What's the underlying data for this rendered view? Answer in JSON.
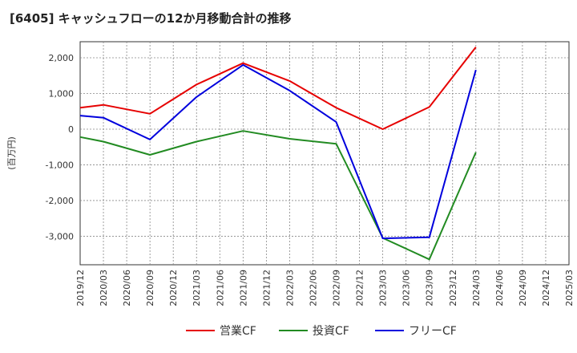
{
  "chart_data": {
    "type": "line",
    "title": "[6405]  キャッシュフローの12か月移動合計の推移",
    "ylabel": "(百万円)",
    "xlabel": "",
    "ylim": [
      -3800,
      2450
    ],
    "yticks": [
      2000,
      1000,
      0,
      -1000,
      -2000,
      -3000
    ],
    "ytick_labels": [
      "2,000",
      "1,000",
      "0",
      "-1,000",
      "-2,000",
      "-3,000"
    ],
    "categories": [
      "2019/12",
      "2020/03",
      "2020/06",
      "2020/09",
      "2020/12",
      "2021/03",
      "2021/06",
      "2021/09",
      "2021/12",
      "2022/03",
      "2022/06",
      "2022/09",
      "2022/12",
      "2023/03",
      "2023/06",
      "2023/09",
      "2023/12",
      "2024/03",
      "2024/06",
      "2024/09",
      "2024/12",
      "2025/03"
    ],
    "grid": true,
    "legend_position": "bottom",
    "series": [
      {
        "name": "営業CF",
        "color": "#e60000",
        "points": [
          [
            0,
            600
          ],
          [
            1,
            680
          ],
          [
            3,
            430
          ],
          [
            5,
            1250
          ],
          [
            7,
            1850
          ],
          [
            9,
            1350
          ],
          [
            11,
            600
          ],
          [
            13,
            0
          ],
          [
            15,
            620
          ],
          [
            17,
            2300
          ]
        ]
      },
      {
        "name": "投資CF",
        "color": "#228b22",
        "points": [
          [
            0,
            -220
          ],
          [
            1,
            -350
          ],
          [
            3,
            -720
          ],
          [
            5,
            -350
          ],
          [
            7,
            -50
          ],
          [
            9,
            -270
          ],
          [
            11,
            -410
          ],
          [
            13,
            -3050
          ],
          [
            15,
            -3650
          ],
          [
            17,
            -650
          ]
        ]
      },
      {
        "name": "フリーCF",
        "color": "#0000dd",
        "points": [
          [
            0,
            380
          ],
          [
            1,
            320
          ],
          [
            3,
            -290
          ],
          [
            5,
            900
          ],
          [
            7,
            1800
          ],
          [
            9,
            1080
          ],
          [
            11,
            200
          ],
          [
            13,
            -3060
          ],
          [
            15,
            -3030
          ],
          [
            17,
            1660
          ]
        ]
      }
    ]
  }
}
